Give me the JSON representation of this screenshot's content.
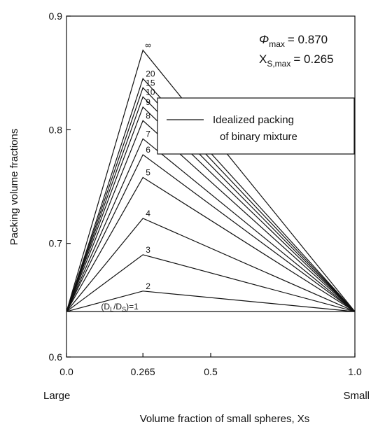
{
  "chart_data": {
    "type": "line",
    "title": "",
    "xlabel": "Volume fraction of small spheres, Xs",
    "ylabel": "Packing volume fractions",
    "xlim": [
      0.0,
      1.0
    ],
    "ylim": [
      0.6,
      0.9
    ],
    "x_ticks": [
      "0.0",
      "0.265",
      "0.5",
      "1.0"
    ],
    "x_tick_values": [
      0.0,
      0.265,
      0.5,
      1.0
    ],
    "y_ticks": [
      "0.6",
      "0.7",
      "0.8",
      "0.9"
    ],
    "y_tick_values": [
      0.6,
      0.7,
      0.8,
      0.9
    ],
    "x_end_labels": {
      "left": "Large",
      "right": "Small"
    },
    "grid": false,
    "baseline": 0.64,
    "series": [
      {
        "label": "(D_L/D_S)=1",
        "x": [
          0.0,
          0.265,
          1.0
        ],
        "y": [
          0.64,
          0.64,
          0.64
        ]
      },
      {
        "label": "2",
        "x": [
          0.0,
          0.265,
          1.0
        ],
        "y": [
          0.64,
          0.658,
          0.64
        ]
      },
      {
        "label": "3",
        "x": [
          0.0,
          0.265,
          1.0
        ],
        "y": [
          0.64,
          0.69,
          0.64
        ]
      },
      {
        "label": "4",
        "x": [
          0.0,
          0.265,
          1.0
        ],
        "y": [
          0.64,
          0.722,
          0.64
        ]
      },
      {
        "label": "5",
        "x": [
          0.0,
          0.265,
          1.0
        ],
        "y": [
          0.64,
          0.758,
          0.64
        ]
      },
      {
        "label": "6",
        "x": [
          0.0,
          0.265,
          1.0
        ],
        "y": [
          0.64,
          0.778,
          0.64
        ]
      },
      {
        "label": "7",
        "x": [
          0.0,
          0.265,
          1.0
        ],
        "y": [
          0.64,
          0.792,
          0.64
        ]
      },
      {
        "label": "8",
        "x": [
          0.0,
          0.265,
          1.0
        ],
        "y": [
          0.64,
          0.808,
          0.64
        ]
      },
      {
        "label": "9",
        "x": [
          0.0,
          0.265,
          1.0
        ],
        "y": [
          0.64,
          0.82,
          0.64
        ]
      },
      {
        "label": "10",
        "x": [
          0.0,
          0.265,
          1.0
        ],
        "y": [
          0.64,
          0.829,
          0.64
        ]
      },
      {
        "label": "15",
        "x": [
          0.0,
          0.265,
          1.0
        ],
        "y": [
          0.64,
          0.837,
          0.64
        ]
      },
      {
        "label": "20",
        "x": [
          0.0,
          0.265,
          1.0
        ],
        "y": [
          0.64,
          0.845,
          0.64
        ]
      },
      {
        "label": "∞",
        "x": [
          0.0,
          0.265,
          1.0
        ],
        "y": [
          0.64,
          0.87,
          0.64
        ]
      }
    ],
    "annotation": {
      "phi_symbol": "Φ",
      "phi_sub": "max",
      "phi_value": "= 0.870",
      "xs_symbol": "X",
      "xs_sub": "S,max",
      "xs_value": "= 0.265"
    },
    "legend": {
      "position": "center-right",
      "entries": [
        "Idealized packing",
        "of binary mixture"
      ]
    }
  }
}
